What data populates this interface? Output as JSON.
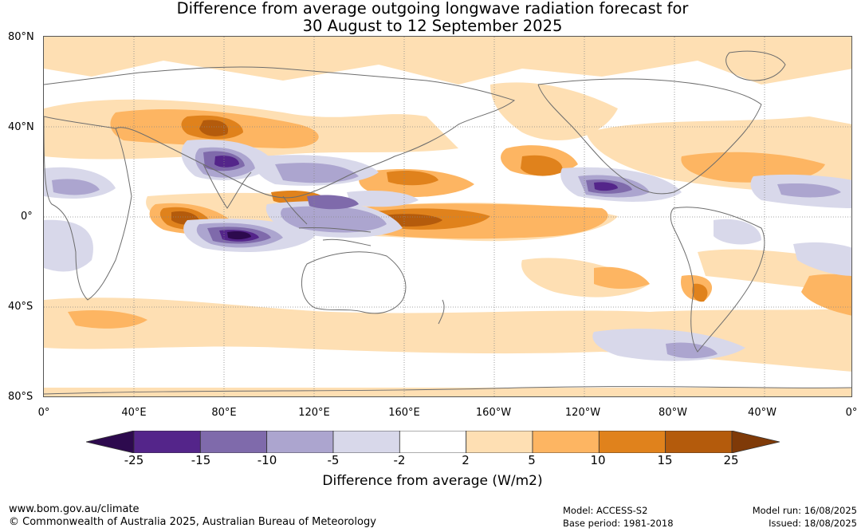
{
  "title": {
    "line1": "Difference from average outgoing longwave radiation forecast for",
    "line2": "30 August to 12 September 2025"
  },
  "map": {
    "lat_labels": [
      "80°N",
      "40°N",
      "0°",
      "40°S",
      "80°S"
    ],
    "lon_labels": [
      "0°",
      "40°E",
      "80°E",
      "120°E",
      "160°E",
      "160°W",
      "120°W",
      "80°W",
      "40°W",
      "0°"
    ]
  },
  "colorbar": {
    "ticks": [
      "-25",
      "-15",
      "-10",
      "-5",
      "-2",
      "2",
      "5",
      "10",
      "15",
      "25"
    ],
    "colors": [
      "#2d0a4e",
      "#54258a",
      "#7f6aab",
      "#aca5cf",
      "#d8d8ea",
      "#ffffff",
      "#fedfb3",
      "#fdb562",
      "#e0821c",
      "#b45b0c",
      "#7f3a08"
    ],
    "title": "Difference from average (W/m2)"
  },
  "footer": {
    "website": "www.bom.gov.au/climate",
    "copyright": "© Commonwealth of Australia 2025, Australian Bureau of Meteorology",
    "model": "Model: ACCESS-S2",
    "base_period": "Base period: 1981-2018",
    "model_run": "Model run: 16/08/2025",
    "issued": "Issued: 18/08/2025"
  }
}
